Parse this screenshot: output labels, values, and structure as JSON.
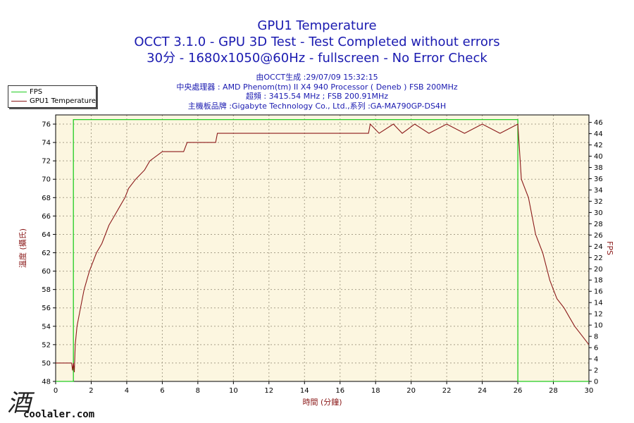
{
  "chart_data": {
    "type": "line",
    "title": "GPU1 Temperature",
    "subtitle_lines": [
      "OCCT 3.1.0 - GPU 3D Test - Test Completed without errors",
      "30分 - 1680x1050@60Hz - fullscreen - No Error Check"
    ],
    "info_lines": [
      "由OCCT生成 :29/07/09 15:32:15",
      "中央處理器 : AMD Phenom(tm) II X4 940 Processor ( Deneb ) FSB 200MHz",
      "超頻 : 3415.54 MHz ; FSB 200.91MHz",
      "主機板品牌 :Gigabyte Technology Co., Ltd.,系列 :GA-MA790GP-DS4H"
    ],
    "xlabel": "時間 (分鐘)",
    "ylabel": "溫度 (攝氏)",
    "y2label": "FPS",
    "xlim": [
      0,
      30
    ],
    "ylim": [
      48,
      77
    ],
    "y2lim": [
      0,
      47.33
    ],
    "x_ticks": [
      0,
      2,
      4,
      6,
      8,
      10,
      12,
      14,
      16,
      18,
      20,
      22,
      24,
      26,
      28,
      30
    ],
    "y_ticks": [
      48,
      50,
      52,
      54,
      56,
      58,
      60,
      62,
      64,
      66,
      68,
      70,
      72,
      74,
      76
    ],
    "y2_ticks": [
      0,
      2,
      4,
      6,
      8,
      10,
      12,
      14,
      16,
      18,
      20,
      22,
      24,
      26,
      28,
      30,
      32,
      34,
      36,
      38,
      40,
      42,
      44,
      46
    ],
    "grid": true,
    "legend_position": "top-left outside",
    "series": [
      {
        "name": "FPS",
        "axis": "right",
        "color": "#22cc22",
        "points": [
          [
            0,
            0
          ],
          [
            1.0,
            0
          ],
          [
            1.0,
            46.5
          ],
          [
            26.0,
            46.5
          ],
          [
            26.0,
            0
          ],
          [
            30,
            0
          ]
        ]
      },
      {
        "name": "GPU1 Temperature",
        "axis": "left",
        "color": "#8b1a1a",
        "points": [
          [
            0,
            50
          ],
          [
            0.9,
            50
          ],
          [
            0.95,
            49.2
          ],
          [
            1.0,
            50
          ],
          [
            1.05,
            49
          ],
          [
            1.1,
            52
          ],
          [
            1.2,
            54
          ],
          [
            1.4,
            56
          ],
          [
            1.6,
            58
          ],
          [
            1.9,
            60
          ],
          [
            2.3,
            62
          ],
          [
            2.6,
            63
          ],
          [
            3.0,
            65
          ],
          [
            3.3,
            66
          ],
          [
            3.6,
            67
          ],
          [
            3.9,
            68
          ],
          [
            4.1,
            69
          ],
          [
            4.5,
            70
          ],
          [
            5.0,
            71
          ],
          [
            5.3,
            72
          ],
          [
            6.0,
            73
          ],
          [
            7.2,
            73
          ],
          [
            7.4,
            74
          ],
          [
            9.0,
            74
          ],
          [
            9.1,
            75
          ],
          [
            17.6,
            75
          ],
          [
            17.7,
            76
          ],
          [
            18.2,
            75
          ],
          [
            19.0,
            76
          ],
          [
            19.5,
            75
          ],
          [
            20.2,
            76
          ],
          [
            21.0,
            75
          ],
          [
            22.0,
            76
          ],
          [
            23.0,
            75
          ],
          [
            24.0,
            76
          ],
          [
            25.0,
            75
          ],
          [
            26.0,
            76
          ],
          [
            26.2,
            70
          ],
          [
            26.6,
            68
          ],
          [
            27.0,
            64
          ],
          [
            27.4,
            62
          ],
          [
            27.8,
            59
          ],
          [
            28.2,
            57
          ],
          [
            28.6,
            56
          ],
          [
            28.9,
            55
          ],
          [
            29.2,
            54
          ],
          [
            29.6,
            53
          ],
          [
            30.0,
            52
          ]
        ]
      }
    ]
  },
  "watermark": {
    "glyph": "酒",
    "site": "coolaler.com"
  }
}
